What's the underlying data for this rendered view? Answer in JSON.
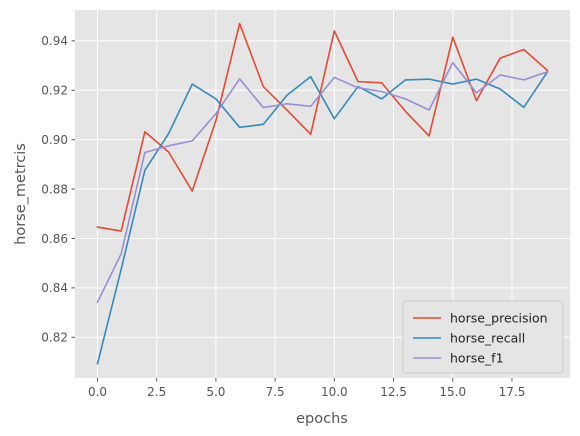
{
  "chart_data": {
    "type": "line",
    "xlabel": "epochs",
    "ylabel": "horse_metrcis",
    "xlim": [
      -0.95,
      19.95
    ],
    "ylim": [
      0.8035,
      0.9525
    ],
    "xticks": [
      0.0,
      2.5,
      5.0,
      7.5,
      10.0,
      12.5,
      15.0,
      17.5
    ],
    "xtick_labels": [
      "0.0",
      "2.5",
      "5.0",
      "7.5",
      "10.0",
      "12.5",
      "15.0",
      "17.5"
    ],
    "yticks": [
      0.82,
      0.84,
      0.86,
      0.88,
      0.9,
      0.92,
      0.94
    ],
    "ytick_labels": [
      "0.82",
      "0.84",
      "0.86",
      "0.88",
      "0.90",
      "0.92",
      "0.94"
    ],
    "grid": true,
    "legend_position": "lower-right",
    "x": [
      0,
      1,
      2,
      3,
      4,
      5,
      6,
      7,
      8,
      9,
      10,
      11,
      12,
      13,
      14,
      15,
      16,
      17,
      18,
      19
    ],
    "series": [
      {
        "name": "horse_precision",
        "color": "#E24A33",
        "values": [
          0.8646,
          0.863,
          0.9032,
          0.895,
          0.8792,
          0.9078,
          0.947,
          0.9215,
          0.912,
          0.9022,
          0.944,
          0.9235,
          0.923,
          0.9115,
          0.9015,
          0.9415,
          0.9158,
          0.933,
          0.9365,
          0.928
        ]
      },
      {
        "name": "horse_recall",
        "color": "#348ABD",
        "values": [
          0.8093,
          0.8475,
          0.8876,
          0.9024,
          0.9225,
          0.9165,
          0.905,
          0.9062,
          0.918,
          0.9255,
          0.9085,
          0.9215,
          0.9165,
          0.9242,
          0.9245,
          0.9225,
          0.9245,
          0.9205,
          0.9131,
          0.9275
        ]
      },
      {
        "name": "horse_f1",
        "color": "#988ED5",
        "values": [
          0.8342,
          0.8538,
          0.8948,
          0.8975,
          0.8995,
          0.9105,
          0.9246,
          0.913,
          0.9145,
          0.9135,
          0.9252,
          0.921,
          0.9195,
          0.9165,
          0.912,
          0.9312,
          0.919,
          0.9262,
          0.9242,
          0.9275
        ]
      }
    ]
  }
}
